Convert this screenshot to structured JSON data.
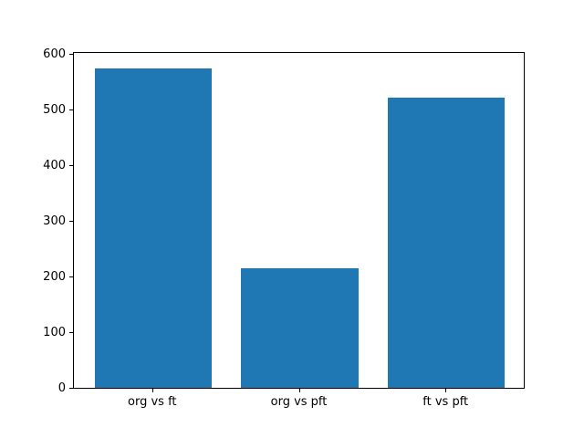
{
  "figure": {
    "background_color": "#ffffff",
    "spine_color": "#000000",
    "tick_label_color": "#000000"
  },
  "chart_data": {
    "type": "bar",
    "categories": [
      "org vs ft",
      "org vs pft",
      "ft vs pft"
    ],
    "values": [
      575,
      215,
      522
    ],
    "title": "",
    "xlabel": "",
    "ylabel": "",
    "ylim": [
      0,
      604
    ],
    "yticks": [
      0,
      100,
      200,
      300,
      400,
      500,
      600
    ],
    "bar_color": "#1f77b4",
    "bar_width_fraction": 0.8,
    "grid": false,
    "legend_position": "none"
  }
}
